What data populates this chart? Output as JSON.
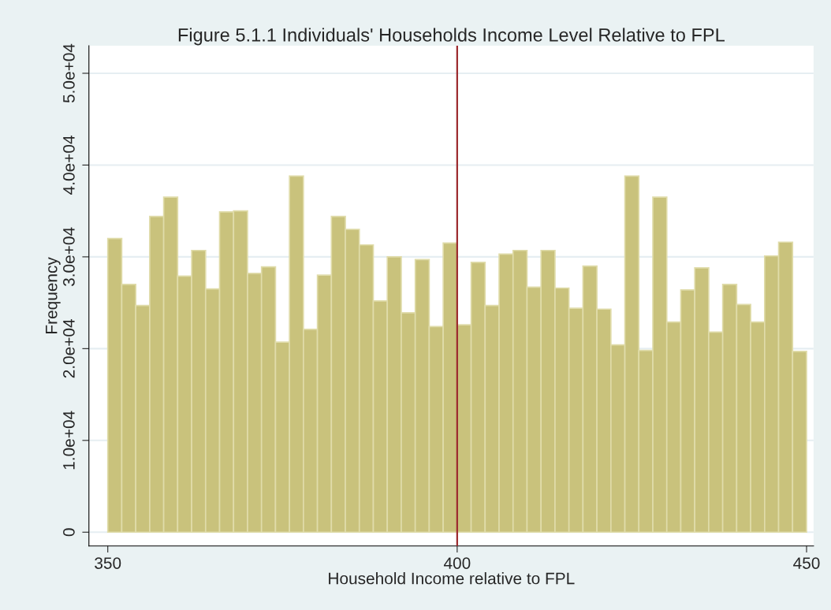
{
  "chart_data": {
    "type": "histogram",
    "title": "Figure 5.1.1 Individuals' Households Income Level Relative to FPL",
    "xlabel": "Household Income relative to FPL",
    "ylabel": "Frequency",
    "bins": [
      350,
      352,
      354,
      356,
      358,
      360,
      362,
      364,
      366,
      368,
      370,
      372,
      374,
      376,
      378,
      380,
      382,
      384,
      386,
      388,
      390,
      392,
      394,
      396,
      398,
      400,
      402,
      404,
      406,
      408,
      410,
      412,
      414,
      416,
      418,
      420,
      422,
      424,
      426,
      428,
      430,
      432,
      434,
      436,
      438,
      440,
      442,
      444,
      446,
      448,
      450
    ],
    "values": [
      32000,
      27000,
      24700,
      34400,
      36500,
      27900,
      30700,
      26500,
      34900,
      35000,
      28200,
      28900,
      20700,
      38800,
      22100,
      28000,
      34400,
      33000,
      31300,
      25200,
      30000,
      23900,
      29700,
      22400,
      31500,
      22600,
      29400,
      24700,
      30300,
      30700,
      26700,
      30700,
      26600,
      24400,
      29000,
      24300,
      20400,
      38800,
      19800,
      36500,
      22900,
      26400,
      28800,
      21800,
      27000,
      24800,
      22900,
      30100,
      31600,
      19700
    ],
    "color": "#c9c27c",
    "xlim": [
      347.3,
      451
    ],
    "xticks": [
      350,
      400,
      450
    ],
    "ylim": [
      -1500,
      53000
    ],
    "yticks": [
      0,
      {
        "value": 10000,
        "label": "1.0e+04"
      },
      {
        "value": 20000,
        "label": "2.0e+04"
      },
      {
        "value": 30000,
        "label": "3.0e+04"
      },
      {
        "value": 40000,
        "label": "4.0e+04"
      },
      {
        "value": 50000,
        "label": "5.0e+04"
      }
    ],
    "grid": "y",
    "ref_lines": [
      {
        "axis": "x",
        "value": 400,
        "color": "#9c2a2e"
      }
    ]
  }
}
